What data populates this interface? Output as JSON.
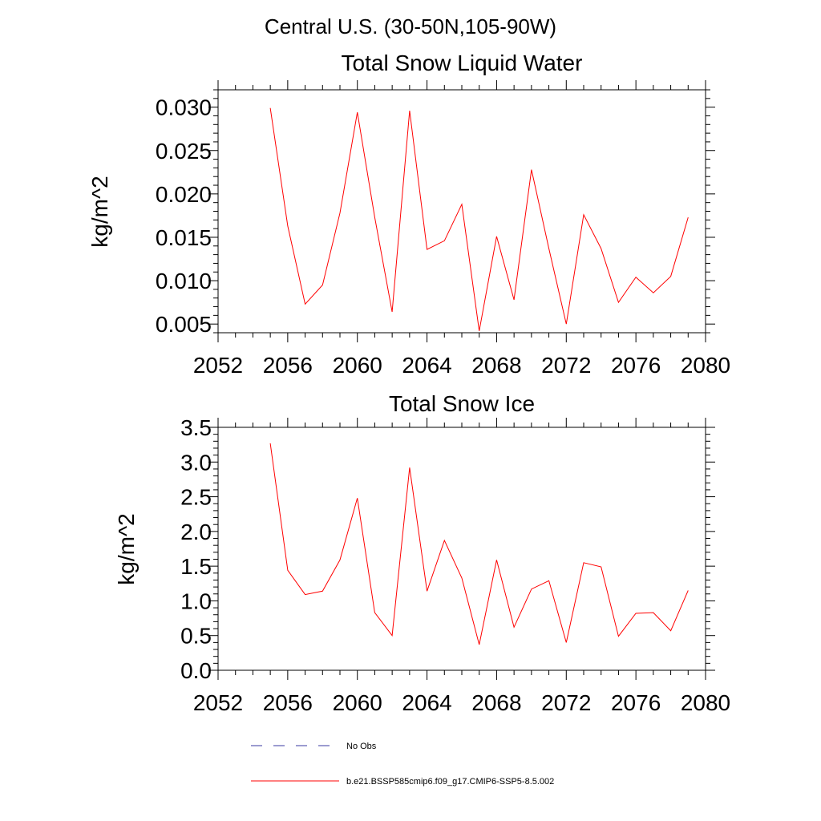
{
  "figure_title": "Central U.S. (30-50N,105-90W)",
  "chart_data": [
    {
      "type": "line",
      "title": "Total Snow Liquid Water",
      "xlabel": "",
      "ylabel": "kg/m^2",
      "xlim": [
        2052,
        2080
      ],
      "ylim": [
        0.004,
        0.032
      ],
      "xticks": [
        2052,
        2056,
        2060,
        2064,
        2068,
        2072,
        2076,
        2080
      ],
      "xtick_labels": [
        "2052",
        "2056",
        "2060",
        "2064",
        "2068",
        "2072",
        "2076",
        "2080"
      ],
      "yticks": [
        0.005,
        0.01,
        0.015,
        0.02,
        0.025,
        0.03
      ],
      "ytick_labels": [
        "0.005",
        "0.010",
        "0.015",
        "0.020",
        "0.025",
        "0.030"
      ],
      "x": [
        2055,
        2056,
        2057,
        2058,
        2059,
        2060,
        2061,
        2062,
        2063,
        2064,
        2065,
        2066,
        2067,
        2068,
        2069,
        2070,
        2071,
        2072,
        2073,
        2074,
        2075,
        2076,
        2077,
        2078,
        2079
      ],
      "series": [
        {
          "name": "b.e21.BSSP585cmip6.f09_g17.CMIP6-SSP5-8.5.002",
          "color": "#ff0000",
          "values": [
            0.0299,
            0.0163,
            0.0073,
            0.0095,
            0.0178,
            0.0294,
            0.0173,
            0.0064,
            0.0296,
            0.0136,
            0.0146,
            0.0188,
            0.0042,
            0.0151,
            0.0078,
            0.0228,
            0.0137,
            0.005,
            0.0176,
            0.0137,
            0.0075,
            0.0104,
            0.0086,
            0.0105,
            0.0173
          ]
        }
      ],
      "grid": false
    },
    {
      "type": "line",
      "title": "Total Snow Ice",
      "xlabel": "",
      "ylabel": "kg/m^2",
      "xlim": [
        2052,
        2080
      ],
      "ylim": [
        0.0,
        3.5
      ],
      "xticks": [
        2052,
        2056,
        2060,
        2064,
        2068,
        2072,
        2076,
        2080
      ],
      "xtick_labels": [
        "2052",
        "2056",
        "2060",
        "2064",
        "2068",
        "2072",
        "2076",
        "2080"
      ],
      "yticks": [
        0.0,
        0.5,
        1.0,
        1.5,
        2.0,
        2.5,
        3.0,
        3.5
      ],
      "ytick_labels": [
        "0.0",
        "0.5",
        "1.0",
        "1.5",
        "2.0",
        "2.5",
        "3.0",
        "3.5"
      ],
      "x": [
        2055,
        2056,
        2057,
        2058,
        2059,
        2060,
        2061,
        2062,
        2063,
        2064,
        2065,
        2066,
        2067,
        2068,
        2069,
        2070,
        2071,
        2072,
        2073,
        2074,
        2075,
        2076,
        2077,
        2078,
        2079
      ],
      "series": [
        {
          "name": "b.e21.BSSP585cmip6.f09_g17.CMIP6-SSP5-8.5.002",
          "color": "#ff0000",
          "values": [
            3.27,
            1.44,
            1.09,
            1.14,
            1.59,
            2.48,
            0.83,
            0.5,
            2.92,
            1.14,
            1.87,
            1.33,
            0.37,
            1.59,
            0.62,
            1.17,
            1.29,
            0.4,
            1.55,
            1.49,
            0.49,
            0.82,
            0.83,
            0.57,
            1.15
          ]
        }
      ],
      "grid": false
    }
  ],
  "legend": {
    "placement": "bottom",
    "entries": [
      {
        "label": "No Obs",
        "style": "dashed",
        "color": "#3a3aa0"
      },
      {
        "label": "b.e21.BSSP585cmip6.f09_g17.CMIP6-SSP5-8.5.002",
        "style": "solid",
        "color": "#ff0000"
      }
    ]
  }
}
